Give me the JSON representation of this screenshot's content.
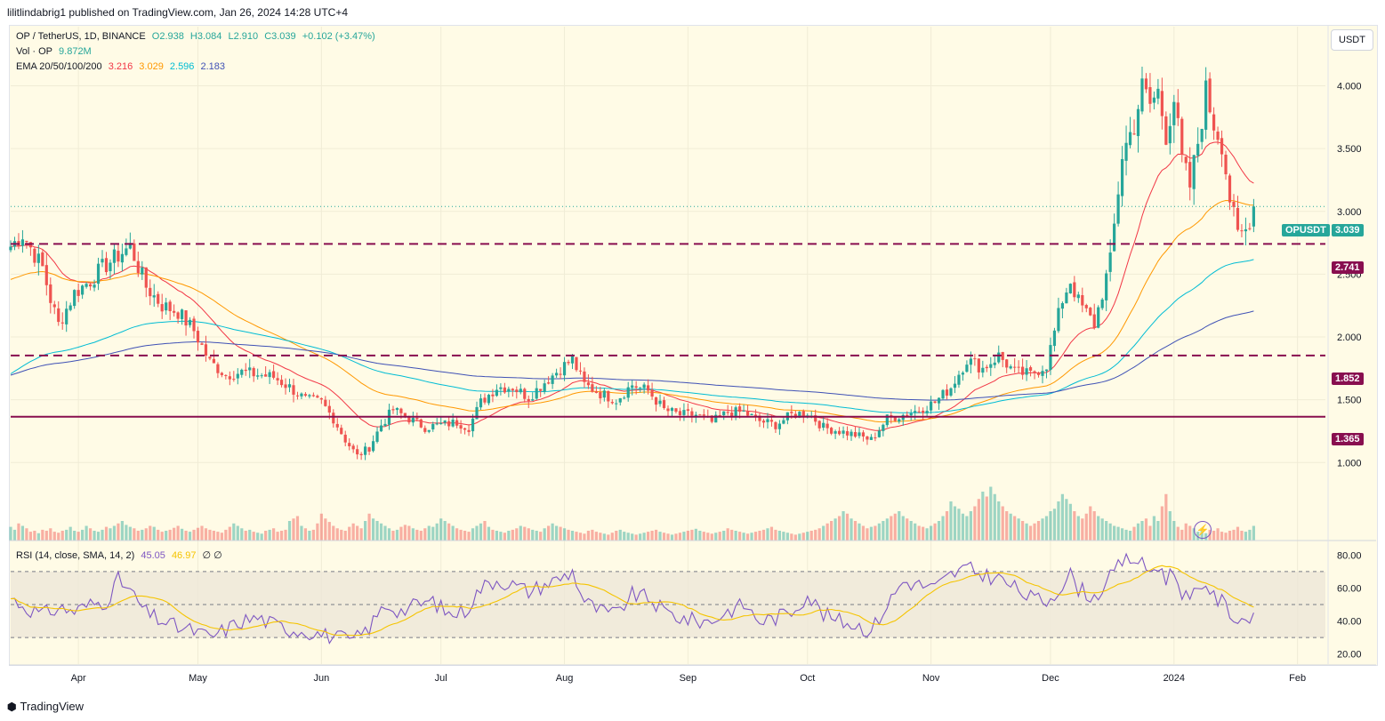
{
  "header": {
    "publisher": "lilitlindabrig1 published on TradingView.com, Jan 26, 2024 14:28 UTC+4"
  },
  "legend": {
    "symbol": "OP / TetherUS, 1D, BINANCE",
    "open": "O2.938",
    "high": "H3.084",
    "low": "L2.910",
    "close": "C3.039",
    "change": "+0.102 (+3.47%)",
    "vol_label": "Vol · OP",
    "vol_value": "9.872M",
    "ema_label": "EMA 20/50/100/200",
    "ema20": "3.216",
    "ema50": "3.029",
    "ema100": "2.596",
    "ema200": "2.183",
    "rsi_label": "RSI (14, close, SMA, 14, 2)",
    "rsi_value": "45.05",
    "rsi_sma": "46.97",
    "rsi_extra": "∅ ∅"
  },
  "currency_button": "USDT",
  "price_tag": {
    "label": "OPUSDT",
    "value": "3.039"
  },
  "level_tags": [
    "2.741",
    "1.852",
    "1.365"
  ],
  "footer": {
    "brand": "TradingView"
  },
  "colors": {
    "up": "#26a69a",
    "down": "#ef5350",
    "ema20": "#f23645",
    "ema50": "#ff9800",
    "ema100": "#00bcd4",
    "ema200": "#3f51b5",
    "level": "#880e4f",
    "rsi": "#7e57c2",
    "rsi_sma": "#f5c400"
  },
  "chart_data": [
    {
      "type": "candlestick",
      "title": "OP / TetherUS, 1D, BINANCE",
      "ylim": [
        0.4,
        4.4
      ],
      "y_ticks": [
        "1.000",
        "1.500",
        "2.000",
        "2.500",
        "3.000",
        "3.500",
        "4.000"
      ],
      "y_tick_values": [
        1.0,
        1.5,
        2.0,
        2.5,
        3.0,
        3.5,
        4.0
      ],
      "x_ticks": [
        "Apr",
        "May",
        "Jun",
        "Jul",
        "Aug",
        "Sep",
        "Oct",
        "Nov",
        "Dec",
        "2024",
        "Feb"
      ],
      "x_tick_days": [
        17,
        47,
        78,
        108,
        139,
        170,
        200,
        231,
        261,
        292,
        323
      ],
      "horizontal_levels": [
        {
          "value": 2.741,
          "style": "dashed"
        },
        {
          "value": 1.852,
          "style": "dashed"
        },
        {
          "value": 1.365,
          "style": "solid"
        }
      ],
      "last_price": 3.039,
      "anchors": [
        [
          0,
          2.72
        ],
        [
          3,
          2.82
        ],
        [
          8,
          2.55
        ],
        [
          10,
          2.3
        ],
        [
          12,
          2.1
        ],
        [
          16,
          2.35
        ],
        [
          20,
          2.45
        ],
        [
          23,
          2.55
        ],
        [
          27,
          2.65
        ],
        [
          30,
          2.72
        ],
        [
          34,
          2.4
        ],
        [
          38,
          2.25
        ],
        [
          42,
          2.2
        ],
        [
          46,
          2.05
        ],
        [
          50,
          1.8
        ],
        [
          54,
          1.7
        ],
        [
          58,
          1.72
        ],
        [
          62,
          1.7
        ],
        [
          66,
          1.68
        ],
        [
          70,
          1.6
        ],
        [
          74,
          1.5
        ],
        [
          78,
          1.48
        ],
        [
          81,
          1.35
        ],
        [
          84,
          1.18
        ],
        [
          87,
          1.05
        ],
        [
          90,
          1.12
        ],
        [
          93,
          1.3
        ],
        [
          96,
          1.42
        ],
        [
          100,
          1.35
        ],
        [
          104,
          1.28
        ],
        [
          108,
          1.3
        ],
        [
          112,
          1.32
        ],
        [
          115,
          1.28
        ],
        [
          118,
          1.48
        ],
        [
          122,
          1.6
        ],
        [
          126,
          1.6
        ],
        [
          130,
          1.52
        ],
        [
          134,
          1.64
        ],
        [
          138,
          1.75
        ],
        [
          141,
          1.82
        ],
        [
          144,
          1.62
        ],
        [
          148,
          1.55
        ],
        [
          152,
          1.5
        ],
        [
          156,
          1.62
        ],
        [
          160,
          1.57
        ],
        [
          164,
          1.42
        ],
        [
          168,
          1.38
        ],
        [
          172,
          1.38
        ],
        [
          176,
          1.32
        ],
        [
          180,
          1.4
        ],
        [
          184,
          1.4
        ],
        [
          188,
          1.33
        ],
        [
          192,
          1.3
        ],
        [
          196,
          1.38
        ],
        [
          200,
          1.4
        ],
        [
          204,
          1.28
        ],
        [
          208,
          1.25
        ],
        [
          212,
          1.22
        ],
        [
          216,
          1.18
        ],
        [
          220,
          1.35
        ],
        [
          224,
          1.38
        ],
        [
          228,
          1.42
        ],
        [
          232,
          1.48
        ],
        [
          236,
          1.6
        ],
        [
          240,
          1.82
        ],
        [
          244,
          1.75
        ],
        [
          248,
          1.85
        ],
        [
          252,
          1.72
        ],
        [
          256,
          1.7
        ],
        [
          260,
          1.78
        ],
        [
          264,
          2.3
        ],
        [
          266,
          2.45
        ],
        [
          268,
          2.28
        ],
        [
          272,
          2.1
        ],
        [
          276,
          2.6
        ],
        [
          279,
          3.45
        ],
        [
          282,
          3.7
        ],
        [
          284,
          3.98
        ],
        [
          286,
          3.85
        ],
        [
          288,
          3.95
        ],
        [
          290,
          3.62
        ],
        [
          292,
          3.9
        ],
        [
          294,
          3.4
        ],
        [
          296,
          3.2
        ],
        [
          298,
          3.55
        ],
        [
          300,
          3.95
        ],
        [
          302,
          3.7
        ],
        [
          304,
          3.55
        ],
        [
          306,
          3.1
        ],
        [
          308,
          2.8
        ],
        [
          310,
          2.85
        ],
        [
          312,
          3.039
        ]
      ],
      "volume_m": [
        28,
        22,
        35,
        30,
        25,
        18,
        20,
        15,
        22,
        20,
        25,
        18,
        16,
        20,
        22,
        28,
        20,
        18,
        22,
        30,
        25,
        20,
        18,
        22,
        28,
        25,
        30,
        35,
        40,
        32,
        28,
        25,
        20,
        22,
        25,
        30,
        28,
        22,
        18,
        20,
        22,
        26,
        30,
        24,
        20,
        18,
        22,
        26,
        30,
        25,
        22,
        20,
        18,
        16,
        22,
        28,
        35,
        30,
        25,
        20,
        22,
        18,
        16,
        14,
        20,
        22,
        25,
        18,
        20,
        22,
        40,
        45,
        50,
        30,
        25,
        20,
        22,
        35,
        55,
        45,
        38,
        30,
        25,
        22,
        20,
        28,
        35,
        30,
        25,
        40,
        55,
        45,
        40,
        35,
        30,
        25,
        20,
        22,
        28,
        32,
        30,
        25,
        22,
        20,
        25,
        30,
        28,
        35,
        45,
        40,
        35,
        30,
        25,
        22,
        20,
        18,
        25,
        30,
        35,
        40,
        28,
        22,
        20,
        18,
        16,
        20,
        22,
        25,
        30,
        28,
        25,
        22,
        20,
        18,
        25,
        30,
        35,
        30,
        28,
        25,
        22,
        20,
        18,
        16,
        14,
        20,
        22,
        18,
        16,
        14,
        12,
        16,
        20,
        22,
        18,
        16,
        14,
        12,
        14,
        16,
        18,
        20,
        22,
        18,
        16,
        14,
        12,
        14,
        16,
        18,
        20,
        22,
        24,
        20,
        18,
        16,
        14,
        16,
        18,
        20,
        25,
        22,
        20,
        18,
        16,
        14,
        16,
        18,
        20,
        22,
        25,
        28,
        22,
        20,
        18,
        16,
        14,
        12,
        14,
        16,
        18,
        20,
        22,
        25,
        30,
        35,
        40,
        45,
        50,
        60,
        55,
        45,
        40,
        35,
        30,
        25,
        28,
        30,
        35,
        40,
        45,
        50,
        55,
        60,
        50,
        45,
        40,
        35,
        30,
        28,
        25,
        30,
        35,
        40,
        50,
        60,
        80,
        70,
        65,
        55,
        50,
        60,
        70,
        85,
        100,
        90,
        110,
        95,
        80,
        70,
        60,
        55,
        50,
        45,
        40,
        35,
        30,
        35,
        40,
        45,
        50,
        60,
        65,
        80,
        95,
        85,
        75,
        60,
        50,
        45,
        55,
        70,
        60,
        50,
        45,
        40,
        35,
        30,
        28,
        25,
        22,
        20,
        28,
        35,
        40,
        45,
        30,
        50,
        40,
        70,
        95,
        60,
        40
      ]
    },
    {
      "type": "line",
      "title": "RSI (14, close, SMA, 14, 2)",
      "ylim": [
        15,
        85
      ],
      "y_ticks": [
        "80.00",
        "60.00",
        "40.00",
        "20.00"
      ],
      "y_tick_values": [
        80,
        60,
        40,
        20
      ],
      "bands": [
        70,
        50,
        30
      ],
      "anchors": [
        [
          0,
          54
        ],
        [
          4,
          48
        ],
        [
          8,
          44
        ],
        [
          12,
          48
        ],
        [
          16,
          46
        ],
        [
          20,
          50
        ],
        [
          24,
          52
        ],
        [
          27,
          65
        ],
        [
          30,
          58
        ],
        [
          34,
          45
        ],
        [
          38,
          40
        ],
        [
          42,
          36
        ],
        [
          46,
          34
        ],
        [
          50,
          30
        ],
        [
          54,
          35
        ],
        [
          58,
          40
        ],
        [
          62,
          42
        ],
        [
          66,
          38
        ],
        [
          70,
          35
        ],
        [
          74,
          34
        ],
        [
          78,
          32
        ],
        [
          82,
          30
        ],
        [
          86,
          28
        ],
        [
          90,
          36
        ],
        [
          94,
          50
        ],
        [
          98,
          46
        ],
        [
          102,
          50
        ],
        [
          106,
          52
        ],
        [
          110,
          44
        ],
        [
          114,
          46
        ],
        [
          118,
          60
        ],
        [
          122,
          65
        ],
        [
          126,
          62
        ],
        [
          130,
          58
        ],
        [
          134,
          62
        ],
        [
          138,
          66
        ],
        [
          141,
          70
        ],
        [
          144,
          52
        ],
        [
          148,
          46
        ],
        [
          152,
          44
        ],
        [
          156,
          56
        ],
        [
          160,
          54
        ],
        [
          164,
          46
        ],
        [
          168,
          42
        ],
        [
          172,
          40
        ],
        [
          176,
          40
        ],
        [
          180,
          46
        ],
        [
          184,
          50
        ],
        [
          188,
          40
        ],
        [
          192,
          42
        ],
        [
          196,
          46
        ],
        [
          200,
          56
        ],
        [
          204,
          44
        ],
        [
          208,
          40
        ],
        [
          212,
          38
        ],
        [
          216,
          34
        ],
        [
          220,
          50
        ],
        [
          224,
          64
        ],
        [
          228,
          62
        ],
        [
          232,
          60
        ],
        [
          236,
          68
        ],
        [
          240,
          72
        ],
        [
          244,
          68
        ],
        [
          248,
          66
        ],
        [
          252,
          60
        ],
        [
          256,
          54
        ],
        [
          260,
          52
        ],
        [
          264,
          62
        ],
        [
          266,
          68
        ],
        [
          268,
          60
        ],
        [
          272,
          54
        ],
        [
          276,
          66
        ],
        [
          279,
          76
        ],
        [
          282,
          78
        ],
        [
          284,
          74
        ],
        [
          286,
          70
        ],
        [
          288,
          74
        ],
        [
          290,
          66
        ],
        [
          292,
          70
        ],
        [
          294,
          58
        ],
        [
          296,
          52
        ],
        [
          298,
          58
        ],
        [
          300,
          64
        ],
        [
          302,
          54
        ],
        [
          304,
          52
        ],
        [
          306,
          46
        ],
        [
          308,
          40
        ],
        [
          310,
          42
        ],
        [
          312,
          45.05
        ]
      ]
    }
  ]
}
